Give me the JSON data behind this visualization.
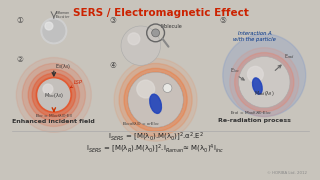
{
  "title": "SERS / Electromagnetic Effect",
  "title_color": "#cc2200",
  "bg_color": "#c8c4bc",
  "slide_bg": "#dedad4",
  "formula1": "I$_{SERS}$ = [M(λ$_{0}$).M(λ$_{0}$)]$^{2}$.α$^{2}$.E$^{2}$",
  "formula2": "I$_{SERS}$ = [M(λ$_{R}$).M(λ$_{0}$)]$^{2}$.I$_{Raman}$≈ M(λ$_{0}$)$^{4}$I$_{inc}$",
  "label1": "Enhanced incident field",
  "label2": "Re-radiation process",
  "step1": "①",
  "step2": "②",
  "step3": "③",
  "step4": "④",
  "step5": "⑤"
}
